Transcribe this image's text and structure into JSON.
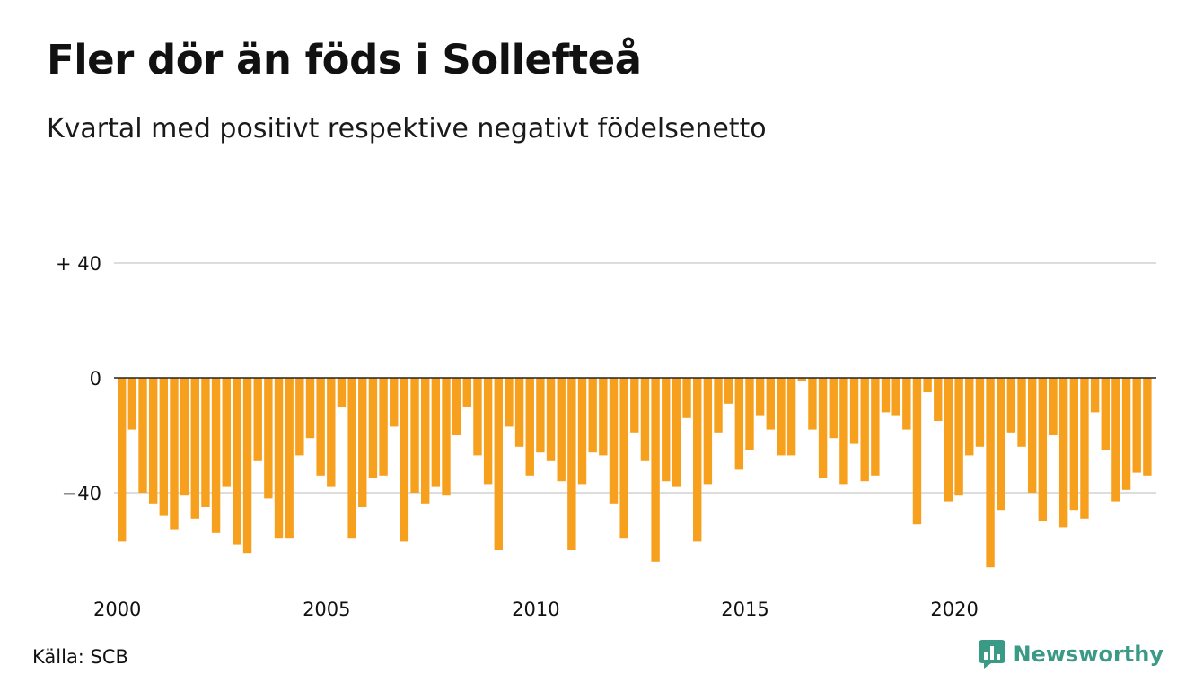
{
  "title": "Fler dör än föds i Sollefteå",
  "subtitle": "Kvartal med positivt respektive negativt födelsenetto",
  "source": "Källa: SCB",
  "brand": "Newsworthy",
  "colors": {
    "bar": "#f7a01e",
    "grid": "#dddddd",
    "zero_line": "#222222",
    "brand": "#3a9a86"
  },
  "chart_data": {
    "type": "bar",
    "x_start": "2000 Q1",
    "frequency": "quarterly",
    "x_tick_labels": [
      "2000",
      "2005",
      "2010",
      "2015",
      "2020"
    ],
    "y_tick_labels": [
      "+ 40",
      "0",
      "−40"
    ],
    "y_ticks": [
      40,
      0,
      -40
    ],
    "ylim": [
      -68,
      40
    ],
    "grid": true,
    "values": [
      -57,
      -18,
      -40,
      -44,
      -48,
      -53,
      -41,
      -49,
      -45,
      -54,
      -38,
      -58,
      -61,
      -29,
      -42,
      -56,
      -56,
      -27,
      -21,
      -34,
      -38,
      -10,
      -56,
      -45,
      -35,
      -34,
      -17,
      -57,
      -40,
      -44,
      -38,
      -41,
      -20,
      -10,
      -27,
      -37,
      -60,
      -17,
      -24,
      -34,
      -26,
      -29,
      -36,
      -60,
      -37,
      -26,
      -27,
      -44,
      -56,
      -19,
      -29,
      -64,
      -36,
      -38,
      -14,
      -57,
      -37,
      -19,
      -9,
      -32,
      -25,
      -13,
      -18,
      -27,
      -27,
      -1,
      -18,
      -35,
      -21,
      -37,
      -23,
      -36,
      -34,
      -12,
      -13,
      -18,
      -51,
      -5,
      -15,
      -43,
      -41,
      -27,
      -24,
      -66,
      -46,
      -19,
      -24,
      -40,
      -50,
      -20,
      -52,
      -46,
      -49,
      -12,
      -25,
      -43,
      -39,
      -33,
      -34
    ]
  }
}
